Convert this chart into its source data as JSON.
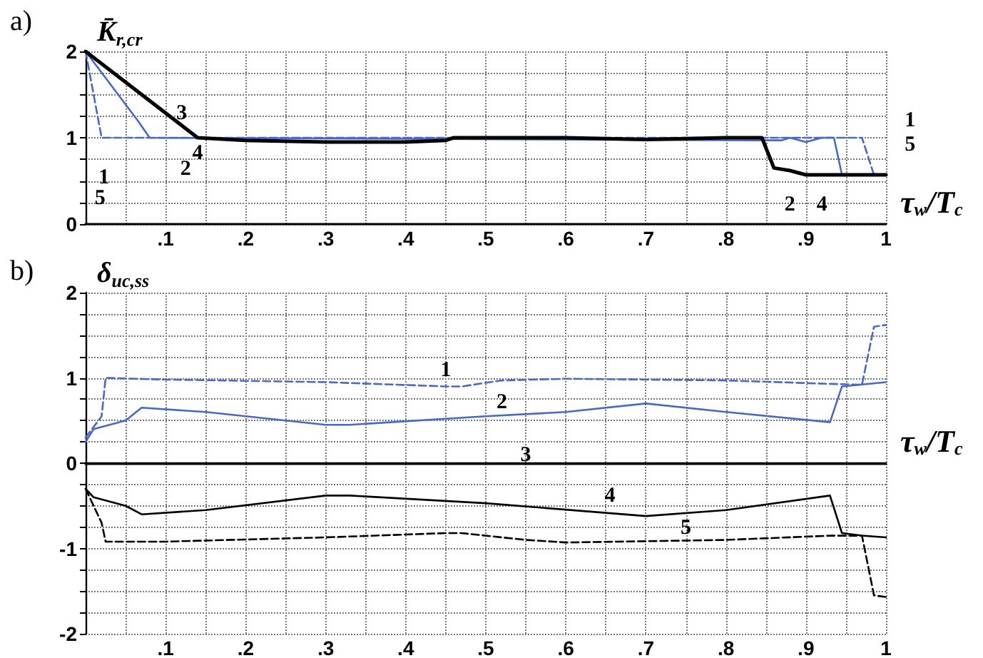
{
  "chart_data": [
    {
      "type": "line",
      "title": "a)",
      "ylabel": "K̄$_{r,cr}$",
      "xlabel": "τ$_{w}$/T$_{c}$",
      "xlim": [
        0,
        1
      ],
      "ylim": [
        0,
        2
      ],
      "xticks": [
        {
          "value": 0,
          "label": null
        },
        {
          "value": 0.05,
          "label": null
        },
        {
          "value": 0.1,
          "label": ".1"
        },
        {
          "value": 0.15,
          "label": null
        },
        {
          "value": 0.2,
          "label": ".2"
        },
        {
          "value": 0.25,
          "label": null
        },
        {
          "value": 0.3,
          "label": ".3"
        },
        {
          "value": 0.35,
          "label": null
        },
        {
          "value": 0.4,
          "label": ".4"
        },
        {
          "value": 0.45,
          "label": null
        },
        {
          "value": 0.5,
          "label": ".5"
        },
        {
          "value": 0.55,
          "label": null
        },
        {
          "value": 0.6,
          "label": ".6"
        },
        {
          "value": 0.65,
          "label": null
        },
        {
          "value": 0.7,
          "label": ".7"
        },
        {
          "value": 0.75,
          "label": null
        },
        {
          "value": 0.8,
          "label": ".8"
        },
        {
          "value": 0.85,
          "label": null
        },
        {
          "value": 0.9,
          "label": ".9"
        },
        {
          "value": 0.95,
          "label": null
        },
        1
      ],
      "yticks": [
        0,
        {
          "value": 0.25,
          "label": null
        },
        {
          "value": 0.5,
          "label": null
        },
        {
          "value": 0.75,
          "label": null
        },
        1,
        {
          "value": 1.25,
          "label": null
        },
        {
          "value": 1.5,
          "label": null
        },
        {
          "value": 1.75,
          "label": null
        },
        2
      ],
      "grid": true,
      "marker": "none",
      "series": [
        {
          "color": "#4a68c4",
          "line_style": "dashed",
          "x": [
            0,
            0.02,
            0.97,
            0.985,
            1
          ],
          "values": [
            2,
            1,
            1,
            0.57,
            0.57
          ]
        },
        {
          "color": "#4a68c4",
          "line_style": "solid",
          "x": [
            0,
            0.065,
            0.08,
            0.84,
            0.87,
            0.88,
            0.9,
            0.92,
            0.935,
            0.945,
            1
          ],
          "values": [
            2,
            1.2,
            1,
            0.97,
            0.97,
            1,
            0.95,
            1,
            1,
            0.57,
            0.57
          ]
        },
        {
          "color": "#000000",
          "line_style": "solid",
          "x": [
            0,
            0.14,
            0.2,
            0.3,
            0.4,
            0.45,
            0.46,
            0.6,
            0.7,
            0.8,
            0.845,
            0.86,
            0.88,
            0.9,
            1
          ],
          "values": [
            2,
            1,
            0.97,
            0.95,
            0.95,
            0.97,
            1,
            1,
            0.98,
            1,
            1,
            0.65,
            0.62,
            0.57,
            0.57
          ]
        }
      ],
      "annotations": [
        "3",
        "4",
        "2",
        "1",
        "5",
        "2",
        "4",
        "1",
        "5"
      ]
    },
    {
      "type": "line",
      "title": "b)",
      "ylabel": "δ$_{uc,ss}$",
      "xlabel": "τ$_{w}$/T$_{c}$",
      "xlim": [
        0,
        1
      ],
      "ylim": [
        -2,
        2
      ],
      "xticks": [
        {
          "value": 0,
          "label": null
        },
        {
          "value": 0.05,
          "label": null
        },
        {
          "value": 0.1,
          "label": ".1"
        },
        {
          "value": 0.15,
          "label": null
        },
        {
          "value": 0.2,
          "label": ".2"
        },
        {
          "value": 0.25,
          "label": null
        },
        {
          "value": 0.3,
          "label": ".3"
        },
        {
          "value": 0.35,
          "label": null
        },
        {
          "value": 0.4,
          "label": ".4"
        },
        {
          "value": 0.45,
          "label": null
        },
        {
          "value": 0.5,
          "label": ".5"
        },
        {
          "value": 0.55,
          "label": null
        },
        {
          "value": 0.6,
          "label": ".6"
        },
        {
          "value": 0.65,
          "label": null
        },
        {
          "value": 0.7,
          "label": ".7"
        },
        {
          "value": 0.75,
          "label": null
        },
        {
          "value": 0.8,
          "label": ".8"
        },
        {
          "value": 0.85,
          "label": null
        },
        {
          "value": 0.9,
          "label": ".9"
        },
        {
          "value": 0.95,
          "label": null
        },
        1
      ],
      "yticks": [
        -2,
        {
          "value": -1.75,
          "label": null
        },
        {
          "value": -1.5,
          "label": null
        },
        {
          "value": -1.25,
          "label": null
        },
        -1,
        {
          "value": -0.75,
          "label": null
        },
        {
          "value": -0.5,
          "label": null
        },
        {
          "value": -0.25,
          "label": null
        },
        0,
        {
          "value": 0.25,
          "label": null
        },
        {
          "value": 0.5,
          "label": null
        },
        {
          "value": 0.75,
          "label": null
        },
        1,
        {
          "value": 1.25,
          "label": null
        },
        {
          "value": 1.5,
          "label": null
        },
        {
          "value": 1.75,
          "label": null
        },
        2
      ],
      "grid": true,
      "marker": "none",
      "series": [
        {
          "color": "#4a68c4",
          "line_style": "dashed",
          "x": [
            0,
            0.02,
            0.025,
            0.1,
            0.3,
            0.45,
            0.47,
            0.52,
            0.6,
            0.8,
            0.93,
            0.97,
            0.985,
            1
          ],
          "values": [
            0.3,
            0.55,
            1,
            0.98,
            0.95,
            0.9,
            0.9,
            0.97,
            0.99,
            0.97,
            0.93,
            0.92,
            1.6,
            1.62
          ]
        },
        {
          "color": "#4a68c4",
          "line_style": "solid",
          "x": [
            0,
            0.01,
            0.05,
            0.07,
            0.15,
            0.3,
            0.33,
            0.5,
            0.6,
            0.7,
            0.8,
            0.93,
            0.945,
            1
          ],
          "values": [
            0.25,
            0.4,
            0.5,
            0.65,
            0.6,
            0.45,
            0.45,
            0.55,
            0.6,
            0.7,
            0.6,
            0.48,
            0.9,
            0.95
          ]
        },
        {
          "color": "#000000",
          "line_style": "solid",
          "x": [
            0,
            1
          ],
          "values": [
            0,
            0
          ]
        },
        {
          "color": "#000000",
          "line_style": "solid",
          "x": [
            0,
            0.01,
            0.05,
            0.07,
            0.15,
            0.3,
            0.33,
            0.5,
            0.7,
            0.8,
            0.93,
            0.945,
            0.97,
            1
          ],
          "values": [
            -0.3,
            -0.4,
            -0.5,
            -0.6,
            -0.55,
            -0.38,
            -0.38,
            -0.47,
            -0.62,
            -0.55,
            -0.38,
            -0.82,
            -0.85,
            -0.87
          ]
        },
        {
          "color": "#000000",
          "line_style": "dashed",
          "x": [
            0,
            0.02,
            0.025,
            0.1,
            0.3,
            0.45,
            0.47,
            0.55,
            0.6,
            0.8,
            0.93,
            0.97,
            0.985,
            1
          ],
          "values": [
            -0.3,
            -0.7,
            -0.92,
            -0.92,
            -0.87,
            -0.82,
            -0.82,
            -0.9,
            -0.93,
            -0.9,
            -0.85,
            -0.85,
            -1.55,
            -1.57
          ]
        }
      ],
      "annotations": [
        "1",
        "2",
        "3",
        "4",
        "5"
      ]
    }
  ]
}
